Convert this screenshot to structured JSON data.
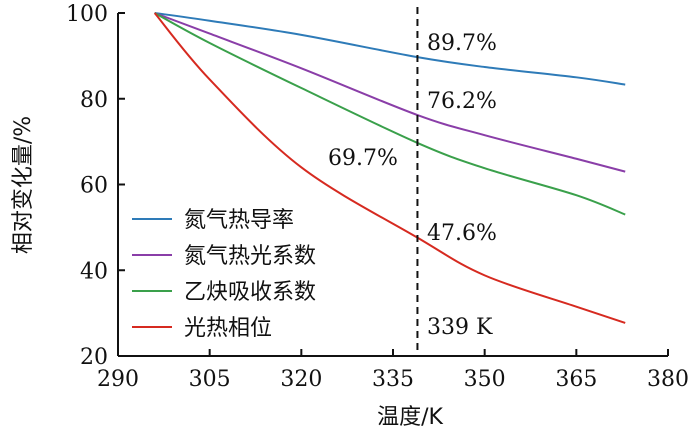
{
  "chart_data": {
    "type": "line",
    "xlabel": "温度/K",
    "ylabel": "相对变化量/%",
    "xlim": [
      290,
      380
    ],
    "ylim": [
      20,
      100
    ],
    "xticks": [
      290,
      305,
      320,
      335,
      350,
      365,
      380
    ],
    "yticks": [
      20,
      40,
      60,
      80,
      100
    ],
    "grid": false,
    "legend_position": "left",
    "series": [
      {
        "name": "氮气热导率",
        "color": "#2e7bb8",
        "x": [
          296,
          305,
          320,
          339,
          350,
          365,
          373
        ],
        "y": [
          100,
          98.2,
          94.9,
          89.7,
          87.4,
          85.0,
          83.3
        ]
      },
      {
        "name": "氮气热光系数",
        "color": "#8a3ea8",
        "x": [
          296,
          305,
          320,
          339,
          350,
          365,
          373
        ],
        "y": [
          100,
          95.2,
          87.1,
          76.2,
          71.5,
          66.0,
          63.0
        ]
      },
      {
        "name": "乙炔吸收系数",
        "color": "#3aa04b",
        "x": [
          296,
          305,
          320,
          339,
          350,
          365,
          373
        ],
        "y": [
          100,
          93.0,
          82.5,
          69.7,
          63.8,
          57.5,
          53.0
        ]
      },
      {
        "name": "光热相位",
        "color": "#d62a20",
        "x": [
          296,
          305,
          320,
          339,
          350,
          365,
          373
        ],
        "y": [
          100,
          84.5,
          64.0,
          47.6,
          38.8,
          31.5,
          27.7
        ]
      }
    ],
    "reference_line": {
      "x": 339,
      "style": "dashed",
      "label": "339 K"
    },
    "annotations": [
      "89.7%",
      "76.2%",
      "69.7%",
      "47.6%"
    ]
  }
}
